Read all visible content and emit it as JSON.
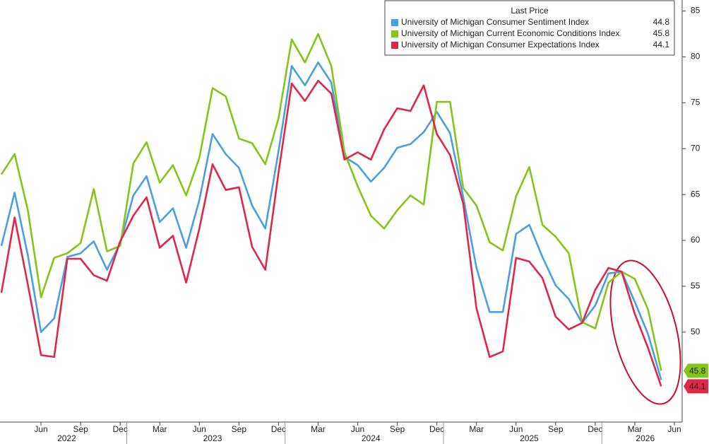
{
  "chart_data": {
    "type": "line",
    "legend_title": "Last Price",
    "x": [
      "2022-03",
      "2022-04",
      "2022-05",
      "2022-06",
      "2022-07",
      "2022-08",
      "2022-09",
      "2022-10",
      "2022-11",
      "2022-12",
      "2023-01",
      "2023-02",
      "2023-03",
      "2023-04",
      "2023-05",
      "2023-06",
      "2023-07",
      "2023-08",
      "2023-09",
      "2023-10",
      "2023-11",
      "2023-12",
      "2024-01",
      "2024-02",
      "2024-03",
      "2024-04",
      "2024-05",
      "2024-06",
      "2024-07",
      "2024-08",
      "2024-09",
      "2024-10",
      "2024-11",
      "2024-12",
      "2025-01",
      "2025-02",
      "2025-03",
      "2025-04",
      "2025-05",
      "2025-06",
      "2025-07",
      "2025-08",
      "2025-09",
      "2025-10",
      "2025-11",
      "2025-12",
      "2026-01",
      "2026-02",
      "2026-03",
      "2026-04",
      "2026-05"
    ],
    "series": [
      {
        "name": "University of Michigan Consumer Sentiment Index",
        "color": "#4a9fe3",
        "values": [
          59.4,
          65.2,
          58.4,
          50.0,
          51.5,
          58.2,
          58.6,
          59.9,
          56.8,
          59.7,
          64.9,
          67.0,
          62.0,
          63.5,
          59.2,
          64.4,
          71.6,
          69.4,
          67.9,
          63.8,
          61.3,
          69.7,
          79.0,
          76.9,
          79.4,
          77.2,
          69.1,
          68.2,
          66.4,
          67.9,
          70.1,
          70.5,
          71.8,
          74.0,
          71.7,
          64.7,
          57.0,
          52.2,
          52.2,
          60.7,
          61.7,
          58.2,
          55.1,
          53.6,
          51.0,
          52.9,
          56.4,
          56.6,
          53.3,
          49.8,
          44.8
        ]
      },
      {
        "name": "University of Michigan Current Economic Conditions Index",
        "color": "#84c51a",
        "values": [
          67.2,
          69.4,
          63.3,
          53.8,
          58.1,
          58.6,
          59.7,
          65.6,
          58.8,
          59.4,
          68.4,
          70.7,
          66.3,
          68.2,
          64.9,
          69.0,
          76.6,
          75.7,
          71.1,
          70.6,
          68.3,
          73.3,
          81.9,
          79.4,
          82.5,
          79.0,
          69.6,
          65.9,
          62.7,
          61.3,
          63.3,
          64.9,
          63.9,
          75.1,
          75.1,
          65.7,
          63.8,
          59.8,
          58.9,
          64.8,
          68.0,
          61.7,
          60.4,
          58.6,
          51.1,
          50.4,
          55.4,
          56.6,
          55.8,
          52.5,
          45.8
        ]
      },
      {
        "name": "University of Michigan Consumer Expectations Index",
        "color": "#e0274a",
        "values": [
          54.3,
          62.5,
          55.2,
          47.5,
          47.3,
          58.0,
          58.0,
          56.2,
          55.6,
          59.9,
          62.7,
          64.7,
          59.2,
          60.5,
          55.4,
          61.3,
          68.3,
          65.5,
          65.8,
          59.3,
          56.8,
          67.4,
          77.1,
          75.2,
          77.4,
          76.0,
          68.8,
          69.6,
          68.8,
          72.1,
          74.4,
          74.1,
          76.9,
          71.6,
          69.3,
          64.0,
          52.6,
          47.3,
          47.9,
          58.1,
          57.7,
          55.9,
          51.7,
          50.3,
          51.0,
          54.6,
          57.0,
          56.6,
          52.0,
          48.3,
          44.1
        ]
      }
    ],
    "xlim": [
      "2022-03",
      "2026-06"
    ],
    "xticks": [
      {
        "value": "2022-06",
        "label": "Jun"
      },
      {
        "value": "2022-09",
        "label": "Sep"
      },
      {
        "value": "2022-12",
        "label": "Dec"
      },
      {
        "value": "2023-03",
        "label": "Mar"
      },
      {
        "value": "2023-06",
        "label": "Jun"
      },
      {
        "value": "2023-09",
        "label": "Sep"
      },
      {
        "value": "2023-12",
        "label": "Dec"
      },
      {
        "value": "2024-03",
        "label": "Mar"
      },
      {
        "value": "2024-06",
        "label": "Jun"
      },
      {
        "value": "2024-09",
        "label": "Sep"
      },
      {
        "value": "2024-12",
        "label": "Dec"
      },
      {
        "value": "2025-03",
        "label": "Mar"
      },
      {
        "value": "2025-06",
        "label": "Jun"
      },
      {
        "value": "2025-09",
        "label": "Sep"
      },
      {
        "value": "2025-12",
        "label": "Dec"
      },
      {
        "value": "2026-03",
        "label": "Mar"
      },
      {
        "value": "2026-06",
        "label": "Jun"
      }
    ],
    "year_labels": [
      "2022",
      "2023",
      "2024",
      "2025",
      "2026"
    ],
    "ylim": [
      40.2,
      86.2
    ],
    "yticks": [
      50,
      55,
      60,
      65,
      70,
      75,
      80,
      85
    ],
    "badges": [
      1,
      2
    ]
  }
}
